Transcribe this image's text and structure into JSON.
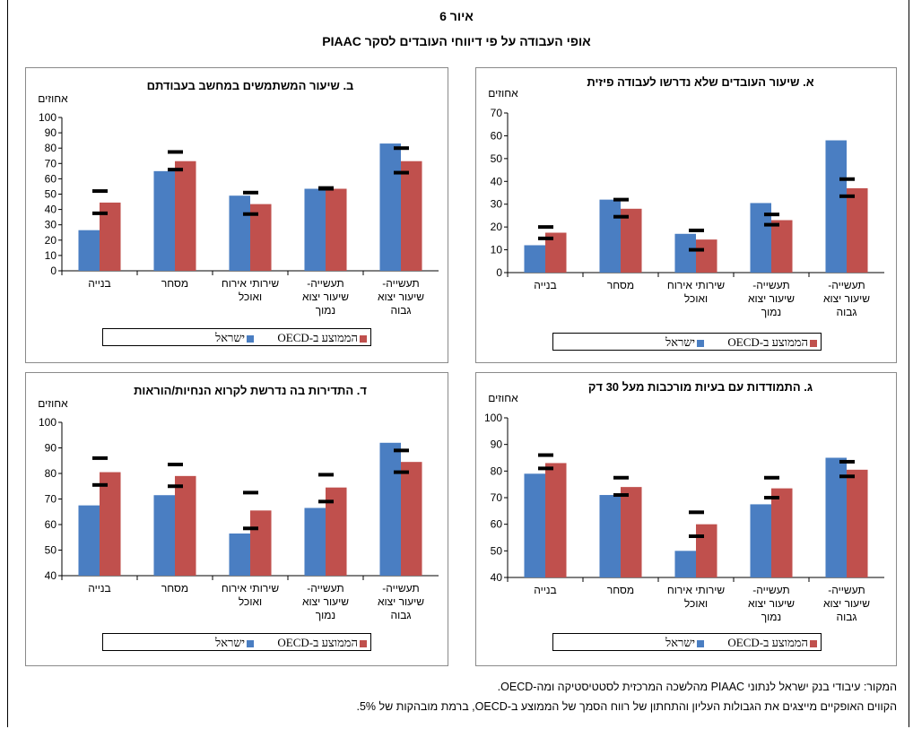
{
  "figure": {
    "number": "איור 6",
    "title": "אופי העבודה על פי דיווחי העובדים לסקר PIAAC"
  },
  "colors": {
    "israel": "#4a7ec2",
    "oecd": "#c0504d",
    "marker": "#000000"
  },
  "legend": {
    "israel": "ישראל",
    "oecd": "הממוצע ב-OECD"
  },
  "notes": {
    "source": "המקור: עיבודי בנק ישראל לנתוני PIAAC מהלשכה המרכזית לסטטיסטיקה ומה-OECD.",
    "lines": "הקווים האופקיים מייצגים את הגבולות העליון והתחתון של רווח הסמך של הממוצע ב-OECD, ברמת מובהקות של 5%."
  },
  "chart_data": [
    {
      "id": "A",
      "type": "bar",
      "title": "א. שיעור העובדים שלא נדרשו לעבודה פיזית",
      "ylabel": "אחוזים",
      "ylim": [
        0,
        70
      ],
      "ytick_step": 10,
      "categories": [
        "תעשייה-שיעור יצוא גבוה",
        "תעשייה-שיעור יצוא נמוך",
        "שירותי אירוח ואוכל",
        "מסחר",
        "בנייה"
      ],
      "category_lines": [
        [
          "תעשייה-",
          "שיעור יצוא",
          "גבוה"
        ],
        [
          "תעשייה-",
          "שיעור יצוא",
          "נמוך"
        ],
        [
          "שירותי אירוח",
          "ואוכל"
        ],
        [
          "מסחר"
        ],
        [
          "בנייה"
        ]
      ],
      "series": [
        {
          "name": "ישראל",
          "values": [
            58,
            30.5,
            17,
            32,
            12
          ]
        },
        {
          "name": "הממוצע ב-OECD",
          "values": [
            37,
            23,
            14.5,
            28,
            17.5
          ]
        }
      ],
      "oecd_ci_upper": [
        41,
        25.5,
        18.5,
        32,
        20
      ],
      "oecd_ci_lower": [
        33.5,
        21,
        10,
        24.5,
        15
      ]
    },
    {
      "id": "B",
      "type": "bar",
      "title": "ב. שיעור המשתמשים במחשב בעבודתם",
      "ylabel": "אחוזים",
      "ylim": [
        0,
        100
      ],
      "ytick_step": 10,
      "categories": [
        "תעשייה-שיעור יצוא גבוה",
        "תעשייה-שיעור יצוא נמוך",
        "שירותי אירוח ואוכל",
        "מסחר",
        "בנייה"
      ],
      "category_lines": [
        [
          "תעשייה-",
          "שיעור יצוא",
          "גבוה"
        ],
        [
          "תעשייה-",
          "שיעור יצוא",
          "נמוך"
        ],
        [
          "שירותי אירוח",
          "ואוכל"
        ],
        [
          "מסחר"
        ],
        [
          "בנייה"
        ]
      ],
      "series": [
        {
          "name": "ישראל",
          "values": [
            83,
            53.5,
            49,
            65,
            26.5
          ]
        },
        {
          "name": "הממוצע ב-OECD",
          "values": [
            71.5,
            53.5,
            43.5,
            71.5,
            44.5
          ]
        }
      ],
      "oecd_ci_upper": [
        80,
        54,
        51,
        77.5,
        52
      ],
      "oecd_ci_lower": [
        64,
        53.5,
        37,
        66,
        37.5
      ]
    },
    {
      "id": "C",
      "type": "bar",
      "title": "ג. התמודדות עם בעיות מורכבות מעל 30 דק",
      "ylabel": "אחוזים",
      "ylim": [
        40,
        100
      ],
      "ytick_step": 10,
      "categories": [
        "תעשייה-שיעור יצוא גבוה",
        "תעשייה-שיעור יצוא נמוך",
        "שירותי אירוח ואוכל",
        "מסחר",
        "בנייה"
      ],
      "category_lines": [
        [
          "תעשייה-",
          "שיעור יצוא",
          "גבוה"
        ],
        [
          "תעשייה-",
          "שיעור יצוא",
          "נמוך"
        ],
        [
          "שירותי אירוח",
          "ואוכל"
        ],
        [
          "מסחר"
        ],
        [
          "בנייה"
        ]
      ],
      "series": [
        {
          "name": "ישראל",
          "values": [
            85,
            67.5,
            50,
            71,
            79
          ]
        },
        {
          "name": "הממוצע ב-OECD",
          "values": [
            80.5,
            73.5,
            60,
            74,
            83
          ]
        }
      ],
      "oecd_ci_upper": [
        83.5,
        77.5,
        64.5,
        77.5,
        86
      ],
      "oecd_ci_lower": [
        78,
        70,
        55.5,
        71,
        81
      ]
    },
    {
      "id": "D",
      "type": "bar",
      "title": "ד. התדירות בה נדרשת לקרוא הנחיות/הוראות",
      "ylabel": "אחוזים",
      "ylim": [
        40,
        100
      ],
      "ytick_step": 10,
      "categories": [
        "תעשייה-שיעור יצוא גבוה",
        "תעשייה-שיעור יצוא נמוך",
        "שירותי אירוח ואוכל",
        "מסחר",
        "בנייה"
      ],
      "category_lines": [
        [
          "תעשייה-",
          "שיעור יצוא",
          "גבוה"
        ],
        [
          "תעשייה-",
          "שיעור יצוא",
          "נמוך"
        ],
        [
          "שירותי אירוח",
          "ואוכל"
        ],
        [
          "מסחר"
        ],
        [
          "בנייה"
        ]
      ],
      "series": [
        {
          "name": "ישראל",
          "values": [
            92,
            66.5,
            56.5,
            71.5,
            67.5
          ]
        },
        {
          "name": "הממוצע ב-OECD",
          "values": [
            84.5,
            74.5,
            65.5,
            79,
            80.5
          ]
        }
      ],
      "oecd_ci_upper": [
        89,
        79.5,
        72.5,
        83.5,
        86
      ],
      "oecd_ci_lower": [
        80.5,
        69,
        58.5,
        75,
        75.5
      ]
    }
  ]
}
